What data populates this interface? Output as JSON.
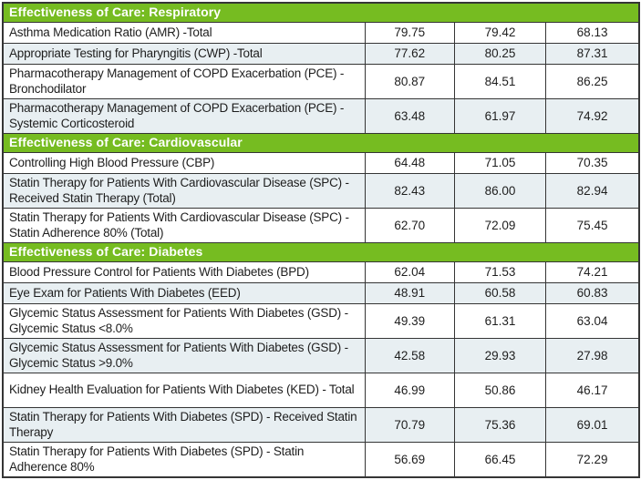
{
  "colors": {
    "section_header_green": "#76BC21",
    "stripe_blue": "#E8EFF2",
    "border_dark": "#353535",
    "section_header_text": "#ffffff"
  },
  "chart_data": {
    "type": "table",
    "sections": [
      {
        "header": "Effectiveness of Care: Respiratory",
        "rows": [
          {
            "measure": "Asthma Medication Ratio (AMR) -Total",
            "values": [
              "79.75",
              "79.42",
              "68.13"
            ]
          },
          {
            "measure": "Appropriate Testing for Pharyngitis (CWP) -Total",
            "values": [
              "77.62",
              "80.25",
              "87.31"
            ]
          },
          {
            "measure": "Pharmacotherapy Management of COPD Exacerbation (PCE) - Bronchodilator",
            "values": [
              "80.87",
              "84.51",
              "86.25"
            ]
          },
          {
            "measure": "Pharmacotherapy Management of COPD Exacerbation (PCE) - Systemic Corticosteroid",
            "values": [
              "63.48",
              "61.97",
              "74.92"
            ]
          }
        ]
      },
      {
        "header": "Effectiveness of Care: Cardiovascular",
        "rows": [
          {
            "measure": "Controlling High Blood Pressure (CBP)",
            "values": [
              "64.48",
              "71.05",
              "70.35"
            ]
          },
          {
            "measure": "Statin Therapy for Patients With Cardiovascular Disease (SPC) - Received Statin Therapy (Total)",
            "values": [
              "82.43",
              "86.00",
              "82.94"
            ]
          },
          {
            "measure": "Statin Therapy for Patients With Cardiovascular Disease (SPC) - Statin Adherence 80% (Total)",
            "values": [
              "62.70",
              "72.09",
              "75.45"
            ]
          }
        ]
      },
      {
        "header": "Effectiveness of Care: Diabetes",
        "rows": [
          {
            "measure": "Blood Pressure Control for Patients With Diabetes (BPD)",
            "values": [
              "62.04",
              "71.53",
              "74.21"
            ]
          },
          {
            "measure": "Eye Exam for Patients With Diabetes (EED)",
            "values": [
              "48.91",
              "60.58",
              "60.83"
            ]
          },
          {
            "measure": "Glycemic Status Assessment for Patients With Diabetes (GSD) - Glycemic Status <8.0%",
            "values": [
              "49.39",
              "61.31",
              "63.04"
            ]
          },
          {
            "measure": "Glycemic Status Assessment for Patients With Diabetes (GSD) - Glycemic Status  >9.0%",
            "values": [
              "42.58",
              "29.93",
              "27.98"
            ]
          },
          {
            "measure": "Kidney Health Evaluation for Patients With Diabetes (KED) - Total",
            "values": [
              "46.99",
              "50.86",
              "46.17"
            ]
          },
          {
            "measure": "Statin Therapy for Patients With Diabetes (SPD) - Received Statin Therapy",
            "values": [
              "70.79",
              "75.36",
              "69.01"
            ]
          },
          {
            "measure": "Statin Therapy for Patients With Diabetes (SPD) - Statin Adherence 80%",
            "values": [
              "56.69",
              "66.45",
              "72.29"
            ]
          }
        ]
      }
    ]
  }
}
